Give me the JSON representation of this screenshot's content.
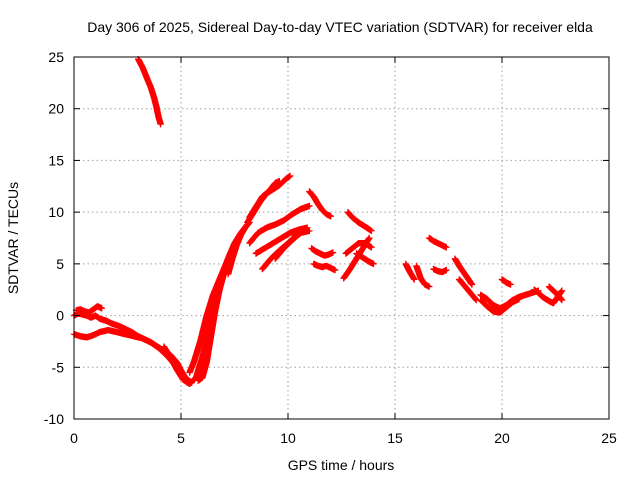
{
  "chart_data": {
    "type": "scatter",
    "title": "Day 306 of 2025, Sidereal Day-to-day VTEC variation (SDTVAR) for receiver elda",
    "xlabel": "GPS time / hours",
    "ylabel": "SDTVAR / TECUs",
    "xlim": [
      0,
      25
    ],
    "ylim": [
      -10,
      25
    ],
    "xticks": [
      0,
      5,
      10,
      15,
      20,
      25
    ],
    "yticks": [
      -10,
      -5,
      0,
      5,
      10,
      15,
      20,
      25
    ],
    "grid": true,
    "marker": "+",
    "series": [
      {
        "name": "SDTVAR",
        "color": "#ff0000",
        "tracks": [
          {
            "x": [
              3.0,
              3.2,
              3.4,
              3.6,
              3.75,
              3.85,
              3.95,
              4.05
            ],
            "y": [
              24.8,
              24.0,
              23.0,
              22.0,
              21.0,
              20.2,
              19.2,
              18.5
            ]
          },
          {
            "x": [
              0.0,
              0.2,
              0.4,
              0.6,
              0.8,
              1.0,
              1.2,
              1.5,
              1.8,
              2.1,
              2.4,
              2.7,
              3.0,
              3.3,
              3.6,
              3.9,
              4.2,
              4.5,
              4.8,
              5.0,
              5.2,
              5.5
            ],
            "y": [
              0.0,
              0.2,
              0.1,
              0.0,
              -0.2,
              0.0,
              -0.3,
              -0.5,
              -0.8,
              -1.0,
              -1.3,
              -1.6,
              -2.0,
              -2.3,
              -2.6,
              -3.0,
              -3.4,
              -3.8,
              -4.5,
              -5.3,
              -6.0,
              -6.5
            ]
          },
          {
            "x": [
              0.0,
              0.3,
              0.6,
              0.9,
              1.2,
              1.6,
              2.0,
              2.4,
              2.8,
              3.2,
              3.6,
              4.0,
              4.4,
              4.8
            ],
            "y": [
              -1.8,
              -2.0,
              -2.1,
              -1.9,
              -1.6,
              -1.4,
              -1.6,
              -1.8,
              -2.0,
              -2.2,
              -2.6,
              -3.2,
              -4.0,
              -5.0
            ]
          },
          {
            "x": [
              0.1,
              0.3,
              0.5,
              0.7,
              0.9,
              1.1,
              1.3
            ],
            "y": [
              0.5,
              0.6,
              0.4,
              0.3,
              0.6,
              0.9,
              0.7
            ]
          },
          {
            "x": [
              4.2,
              4.5,
              4.8,
              5.1,
              5.4,
              5.7,
              6.0,
              6.3,
              6.6,
              6.9,
              7.2,
              7.5,
              7.8,
              8.1
            ],
            "y": [
              -3.0,
              -4.0,
              -5.2,
              -6.2,
              -6.6,
              -6.0,
              -4.0,
              -1.5,
              1.0,
              3.5,
              5.5,
              7.0,
              8.0,
              8.8
            ]
          },
          {
            "x": [
              5.4,
              5.6,
              5.9,
              6.2,
              6.5,
              6.8,
              7.0,
              7.3,
              7.6
            ],
            "y": [
              -5.5,
              -4.5,
              -2.5,
              0.0,
              2.0,
              3.5,
              4.5,
              6.0,
              7.2
            ]
          },
          {
            "x": [
              5.8,
              6.0,
              6.2,
              6.4,
              6.6,
              6.8,
              7.0,
              7.2
            ],
            "y": [
              -6.3,
              -6.0,
              -4.5,
              -2.0,
              0.5,
              2.5,
              4.0,
              5.0
            ]
          },
          {
            "x": [
              7.2,
              7.4,
              7.6,
              7.8,
              8.0,
              8.2
            ],
            "y": [
              4.0,
              5.5,
              6.8,
              7.8,
              8.5,
              9.0
            ]
          },
          {
            "x": [
              8.1,
              8.4,
              8.7,
              9.0,
              9.3,
              9.6,
              9.9,
              10.1
            ],
            "y": [
              9.0,
              10.0,
              11.0,
              11.8,
              12.2,
              12.6,
              13.2,
              13.5
            ]
          },
          {
            "x": [
              8.2,
              8.5,
              8.8,
              9.1,
              9.4,
              9.6
            ],
            "y": [
              9.5,
              10.5,
              11.5,
              12.0,
              12.8,
              13.0
            ]
          },
          {
            "x": [
              8.2,
              8.6,
              9.0,
              9.4,
              9.8,
              10.2,
              10.6,
              11.0
            ],
            "y": [
              7.0,
              8.0,
              8.5,
              8.8,
              9.2,
              9.8,
              10.3,
              10.6
            ]
          },
          {
            "x": [
              8.5,
              8.9,
              9.3,
              9.7,
              10.1,
              10.5,
              10.9
            ],
            "y": [
              6.0,
              6.5,
              7.0,
              7.5,
              8.0,
              8.3,
              8.5
            ]
          },
          {
            "x": [
              8.8,
              9.2,
              9.6,
              10.0,
              10.4,
              10.8
            ],
            "y": [
              4.5,
              5.5,
              6.3,
              7.0,
              7.8,
              8.3
            ]
          },
          {
            "x": [
              9.4,
              9.8,
              10.2,
              10.6,
              11.0
            ],
            "y": [
              5.5,
              6.5,
              7.3,
              8.0,
              8.2
            ]
          },
          {
            "x": [
              11.0,
              11.2,
              11.4,
              11.6,
              11.8,
              12.0
            ],
            "y": [
              12.0,
              11.5,
              10.8,
              10.2,
              9.8,
              9.6
            ]
          },
          {
            "x": [
              11.1,
              11.3,
              11.5,
              11.7,
              11.9,
              12.1
            ],
            "y": [
              6.5,
              6.2,
              6.0,
              5.8,
              5.9,
              6.1
            ]
          },
          {
            "x": [
              11.2,
              11.4,
              11.6,
              11.8,
              12.0,
              12.2
            ],
            "y": [
              5.0,
              4.8,
              4.7,
              4.8,
              4.6,
              4.4
            ]
          },
          {
            "x": [
              12.6,
              12.9,
              13.2,
              13.5,
              13.8
            ],
            "y": [
              3.6,
              4.5,
              5.5,
              6.5,
              7.5
            ]
          },
          {
            "x": [
              12.8,
              13.0,
              13.3,
              13.6,
              13.9
            ],
            "y": [
              10.0,
              9.5,
              9.0,
              8.6,
              8.2
            ]
          },
          {
            "x": [
              12.7,
              13.0,
              13.3,
              13.6,
              13.9
            ],
            "y": [
              6.0,
              6.5,
              7.0,
              7.0,
              6.6
            ]
          },
          {
            "x": [
              13.2,
              13.5,
              13.8,
              14.0
            ],
            "y": [
              6.0,
              5.6,
              5.2,
              5.0
            ]
          },
          {
            "x": [
              15.5,
              15.7,
              15.9
            ],
            "y": [
              5.0,
              4.2,
              3.5
            ]
          },
          {
            "x": [
              16.0,
              16.2,
              16.4,
              16.6
            ],
            "y": [
              4.8,
              3.6,
              3.0,
              2.8
            ]
          },
          {
            "x": [
              16.6,
              16.8,
              17.0,
              17.2,
              17.4
            ],
            "y": [
              7.5,
              7.2,
              7.0,
              6.8,
              6.6
            ]
          },
          {
            "x": [
              16.8,
              17.0,
              17.2,
              17.4
            ],
            "y": [
              4.5,
              4.3,
              4.2,
              4.4
            ]
          },
          {
            "x": [
              17.8,
              18.0,
              18.2,
              18.4,
              18.6
            ],
            "y": [
              5.5,
              4.8,
              4.2,
              3.6,
              3.0
            ]
          },
          {
            "x": [
              18.0,
              18.2,
              18.4,
              18.6,
              18.8
            ],
            "y": [
              3.5,
              3.0,
              2.5,
              2.0,
              1.5
            ]
          },
          {
            "x": [
              19.0,
              19.3,
              19.6,
              19.9,
              20.2,
              20.5,
              20.8
            ],
            "y": [
              1.5,
              0.9,
              0.4,
              0.3,
              0.8,
              1.3,
              1.6
            ]
          },
          {
            "x": [
              19.0,
              19.3,
              19.6,
              19.9,
              20.2,
              20.5,
              20.8,
              21.1,
              21.4,
              21.7
            ],
            "y": [
              2.0,
              1.6,
              1.0,
              0.7,
              1.0,
              1.5,
              1.8,
              2.0,
              2.2,
              2.4
            ]
          },
          {
            "x": [
              20.0,
              20.2,
              20.4
            ],
            "y": [
              3.5,
              3.2,
              3.0
            ]
          },
          {
            "x": [
              21.5,
              21.7,
              21.9,
              22.2,
              22.4,
              22.6,
              22.8
            ],
            "y": [
              2.5,
              2.2,
              1.8,
              1.4,
              1.2,
              1.8,
              2.4
            ]
          },
          {
            "x": [
              22.2,
              22.4,
              22.6,
              22.8
            ],
            "y": [
              2.8,
              2.4,
              2.0,
              1.5
            ]
          }
        ]
      }
    ]
  }
}
